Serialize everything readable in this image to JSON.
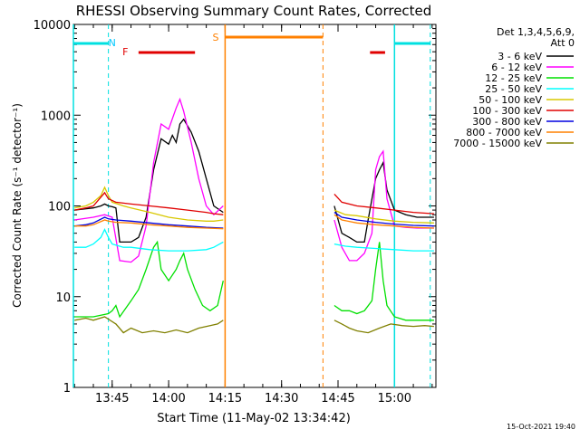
{
  "chart_data": {
    "type": "line",
    "title": "RHESSI Observing Summary Count Rates, Corrected",
    "xlabel": "Start Time (11-May-02 13:34:42)",
    "ylabel": "Corrected Count Rate (s⁻¹ detector⁻¹)",
    "y_scale": "log",
    "ylim": [
      1,
      10000
    ],
    "xlim": [
      "13:34:42",
      "15:11:00"
    ],
    "x_ticks": [
      "13:45",
      "14:00",
      "14:15",
      "14:30",
      "14:45",
      "15:00"
    ],
    "y_ticks": [
      "1",
      "10",
      "100",
      "1000",
      "10000"
    ],
    "legend_position": "right",
    "legend_header": [
      "Det 1,3,4,5,6,9,",
      "Att 0"
    ],
    "footer": "15-Oct-2021 19:40",
    "annotations": [
      {
        "label": "N",
        "color": "#00c8ff"
      },
      {
        "label": "F",
        "color": "#e00000"
      },
      {
        "label": "S",
        "color": "#ff8000"
      }
    ],
    "flag_bars": [
      {
        "kind": "night",
        "color": "#00e0e0",
        "segments": [
          [
            "13:34:42",
            "13:44:00"
          ],
          [
            "15:00:00",
            "15:09:30"
          ]
        ]
      },
      {
        "kind": "flare",
        "color": "#e00000",
        "segments": [
          [
            "13:52:00",
            "14:07:00"
          ],
          [
            "14:53:30",
            "14:57:30"
          ]
        ]
      },
      {
        "kind": "saa",
        "color": "#ff8000",
        "segments": [
          [
            "14:15:00",
            "14:41:00"
          ]
        ]
      }
    ],
    "event_lines": {
      "night_solid": [
        "13:34:42",
        "15:00:00"
      ],
      "night_dashed": [
        "13:44:00",
        "15:09:30"
      ],
      "saa_solid": [
        "14:15:00"
      ],
      "saa_dashed": [
        "14:41:00"
      ]
    },
    "series": [
      {
        "name": "3 - 6 keV",
        "color": "#000000",
        "points": [
          [
            "13:35",
            90
          ],
          [
            "13:40",
            95
          ],
          [
            "13:42",
            100
          ],
          [
            "13:43",
            105
          ],
          [
            "13:44",
            100
          ],
          [
            "13:45",
            98
          ],
          [
            "13:46",
            95
          ],
          [
            "13:47",
            40
          ],
          [
            "13:50",
            40
          ],
          [
            "13:52",
            45
          ],
          [
            "13:54",
            75
          ],
          [
            "13:56",
            250
          ],
          [
            "13:58",
            550
          ],
          [
            "14:00",
            480
          ],
          [
            "14:01",
            600
          ],
          [
            "14:02",
            500
          ],
          [
            "14:03",
            800
          ],
          [
            "14:04",
            900
          ],
          [
            "14:06",
            650
          ],
          [
            "14:08",
            400
          ],
          [
            "14:10",
            200
          ],
          [
            "14:12",
            100
          ],
          [
            "14:14.5",
            85
          ],
          null,
          [
            "14:44",
            100
          ],
          [
            "14:46",
            50
          ],
          [
            "14:48",
            45
          ],
          [
            "14:50",
            40
          ],
          [
            "14:51",
            40
          ],
          [
            "14:52",
            40
          ],
          [
            "14:53",
            70
          ],
          [
            "14:55",
            200
          ],
          [
            "14:56",
            250
          ],
          [
            "14:57",
            300
          ],
          [
            "14:58",
            150
          ],
          [
            "15:00",
            90
          ],
          [
            "15:03",
            80
          ],
          [
            "15:06",
            75
          ],
          [
            "15:09",
            75
          ],
          [
            "15:10.5",
            75
          ]
        ]
      },
      {
        "name": "6 - 12 keV",
        "color": "#ff00ff",
        "points": [
          [
            "13:35",
            70
          ],
          [
            "13:40",
            75
          ],
          [
            "13:43",
            80
          ],
          [
            "13:45",
            75
          ],
          [
            "13:47",
            25
          ],
          [
            "13:50",
            24
          ],
          [
            "13:52",
            28
          ],
          [
            "13:54",
            60
          ],
          [
            "13:56",
            300
          ],
          [
            "13:58",
            800
          ],
          [
            "14:00",
            700
          ],
          [
            "14:02",
            1200
          ],
          [
            "14:03",
            1500
          ],
          [
            "14:04",
            1100
          ],
          [
            "14:06",
            500
          ],
          [
            "14:08",
            200
          ],
          [
            "14:10",
            100
          ],
          [
            "14:12",
            80
          ],
          [
            "14:14.5",
            100
          ],
          null,
          [
            "14:44",
            70
          ],
          [
            "14:46",
            35
          ],
          [
            "14:48",
            25
          ],
          [
            "14:50",
            25
          ],
          [
            "14:52",
            30
          ],
          [
            "14:54",
            50
          ],
          [
            "14:55",
            250
          ],
          [
            "14:56",
            350
          ],
          [
            "14:57",
            400
          ],
          [
            "14:58",
            120
          ],
          [
            "15:00",
            60
          ],
          [
            "15:03",
            58
          ],
          [
            "15:06",
            57
          ],
          [
            "15:10.5",
            57
          ]
        ]
      },
      {
        "name": "12 - 25 keV",
        "color": "#00e000",
        "points": [
          [
            "13:35",
            6
          ],
          [
            "13:40",
            6
          ],
          [
            "13:44",
            6.5
          ],
          [
            "13:45",
            7
          ],
          [
            "13:46",
            8
          ],
          [
            "13:47",
            6
          ],
          [
            "13:50",
            9
          ],
          [
            "13:52",
            12
          ],
          [
            "13:54",
            20
          ],
          [
            "13:56",
            35
          ],
          [
            "13:57",
            40
          ],
          [
            "13:58",
            20
          ],
          [
            "14:00",
            15
          ],
          [
            "14:02",
            20
          ],
          [
            "14:03",
            25
          ],
          [
            "14:04",
            30
          ],
          [
            "14:05",
            20
          ],
          [
            "14:07",
            12
          ],
          [
            "14:09",
            8
          ],
          [
            "14:11",
            7
          ],
          [
            "14:13",
            8
          ],
          [
            "14:14.5",
            15
          ],
          null,
          [
            "14:44",
            8
          ],
          [
            "14:46",
            7
          ],
          [
            "14:48",
            7
          ],
          [
            "14:50",
            6.5
          ],
          [
            "14:52",
            7
          ],
          [
            "14:54",
            9
          ],
          [
            "14:55",
            20
          ],
          [
            "14:56",
            40
          ],
          [
            "14:57",
            15
          ],
          [
            "14:58",
            8
          ],
          [
            "15:00",
            6
          ],
          [
            "15:03",
            5.5
          ],
          [
            "15:06",
            5.5
          ],
          [
            "15:10.5",
            5.5
          ]
        ]
      },
      {
        "name": "25 - 50 keV",
        "color": "#00ffff",
        "points": [
          [
            "13:35",
            35
          ],
          [
            "13:38",
            35
          ],
          [
            "13:40",
            38
          ],
          [
            "13:42",
            45
          ],
          [
            "13:43",
            55
          ],
          [
            "13:44",
            45
          ],
          [
            "13:45",
            38
          ],
          [
            "13:48",
            35
          ],
          [
            "13:50",
            35
          ],
          [
            "13:55",
            33
          ],
          [
            "14:00",
            32
          ],
          [
            "14:05",
            32
          ],
          [
            "14:10",
            33
          ],
          [
            "14:12",
            35
          ],
          [
            "14:14.5",
            40
          ],
          null,
          [
            "14:44",
            38
          ],
          [
            "14:47",
            36
          ],
          [
            "14:50",
            35
          ],
          [
            "14:55",
            34
          ],
          [
            "15:00",
            33
          ],
          [
            "15:05",
            32
          ],
          [
            "15:10.5",
            32
          ]
        ]
      },
      {
        "name": "50 - 100 keV",
        "color": "#d8c800",
        "points": [
          [
            "13:35",
            95
          ],
          [
            "13:38",
            100
          ],
          [
            "13:40",
            110
          ],
          [
            "13:42",
            130
          ],
          [
            "13:43",
            160
          ],
          [
            "13:44",
            130
          ],
          [
            "13:45",
            110
          ],
          [
            "13:48",
            100
          ],
          [
            "13:50",
            95
          ],
          [
            "13:55",
            85
          ],
          [
            "14:00",
            75
          ],
          [
            "14:05",
            70
          ],
          [
            "14:10",
            68
          ],
          [
            "14:12",
            68
          ],
          [
            "14:14.5",
            70
          ],
          null,
          [
            "14:44",
            90
          ],
          [
            "14:47",
            80
          ],
          [
            "14:50",
            78
          ],
          [
            "14:55",
            72
          ],
          [
            "15:00",
            68
          ],
          [
            "15:05",
            66
          ],
          [
            "15:10.5",
            65
          ]
        ]
      },
      {
        "name": "100 - 300 keV",
        "color": "#e00000",
        "points": [
          [
            "13:35",
            90
          ],
          [
            "13:38",
            95
          ],
          [
            "13:40",
            100
          ],
          [
            "13:43",
            140
          ],
          [
            "13:44",
            120
          ],
          [
            "13:46",
            110
          ],
          [
            "13:50",
            105
          ],
          [
            "13:55",
            100
          ],
          [
            "14:00",
            95
          ],
          [
            "14:05",
            90
          ],
          [
            "14:10",
            85
          ],
          [
            "14:12",
            82
          ],
          [
            "14:14.5",
            80
          ],
          null,
          [
            "14:44",
            135
          ],
          [
            "14:46",
            110
          ],
          [
            "14:50",
            100
          ],
          [
            "14:55",
            95
          ],
          [
            "15:00",
            90
          ],
          [
            "15:05",
            85
          ],
          [
            "15:10.5",
            82
          ]
        ]
      },
      {
        "name": "300 - 800 keV",
        "color": "#0000e0",
        "points": [
          [
            "13:35",
            60
          ],
          [
            "13:38",
            62
          ],
          [
            "13:40",
            65
          ],
          [
            "13:43",
            75
          ],
          [
            "13:44",
            72
          ],
          [
            "13:46",
            70
          ],
          [
            "13:50",
            68
          ],
          [
            "13:55",
            65
          ],
          [
            "14:00",
            62
          ],
          [
            "14:05",
            60
          ],
          [
            "14:10",
            58
          ],
          [
            "14:14.5",
            57
          ],
          null,
          [
            "14:44",
            85
          ],
          [
            "14:46",
            75
          ],
          [
            "14:50",
            70
          ],
          [
            "14:55",
            66
          ],
          [
            "15:00",
            63
          ],
          [
            "15:05",
            61
          ],
          [
            "15:10.5",
            60
          ]
        ]
      },
      {
        "name": "800 - 7000 keV",
        "color": "#ff8000",
        "points": [
          [
            "13:35",
            60
          ],
          [
            "13:38",
            60
          ],
          [
            "13:40",
            62
          ],
          [
            "13:43",
            70
          ],
          [
            "13:44",
            68
          ],
          [
            "13:46",
            66
          ],
          [
            "13:50",
            65
          ],
          [
            "13:55",
            62
          ],
          [
            "14:00",
            60
          ],
          [
            "14:05",
            58
          ],
          [
            "14:10",
            57
          ],
          [
            "14:14.5",
            56
          ],
          null,
          [
            "14:44",
            80
          ],
          [
            "14:46",
            70
          ],
          [
            "14:50",
            65
          ],
          [
            "14:55",
            62
          ],
          [
            "15:00",
            60
          ],
          [
            "15:05",
            58
          ],
          [
            "15:10.5",
            57
          ]
        ]
      },
      {
        "name": "7000 - 15000 keV",
        "color": "#808000",
        "points": [
          [
            "13:35",
            5.5
          ],
          [
            "13:38",
            5.8
          ],
          [
            "13:40",
            5.5
          ],
          [
            "13:43",
            6
          ],
          [
            "13:46",
            5
          ],
          [
            "13:48",
            4
          ],
          [
            "13:50",
            4.5
          ],
          [
            "13:53",
            4
          ],
          [
            "13:56",
            4.2
          ],
          [
            "13:59",
            4
          ],
          [
            "14:02",
            4.3
          ],
          [
            "14:05",
            4
          ],
          [
            "14:08",
            4.5
          ],
          [
            "14:11",
            4.8
          ],
          [
            "14:13",
            5
          ],
          [
            "14:14.5",
            5.5
          ],
          null,
          [
            "14:44",
            5.5
          ],
          [
            "14:46",
            5
          ],
          [
            "14:48",
            4.5
          ],
          [
            "14:50",
            4.2
          ],
          [
            "14:53",
            4
          ],
          [
            "14:56",
            4.5
          ],
          [
            "14:59",
            5
          ],
          [
            "15:02",
            4.8
          ],
          [
            "15:05",
            4.7
          ],
          [
            "15:08",
            4.8
          ],
          [
            "15:10.5",
            4.7
          ]
        ]
      }
    ]
  }
}
